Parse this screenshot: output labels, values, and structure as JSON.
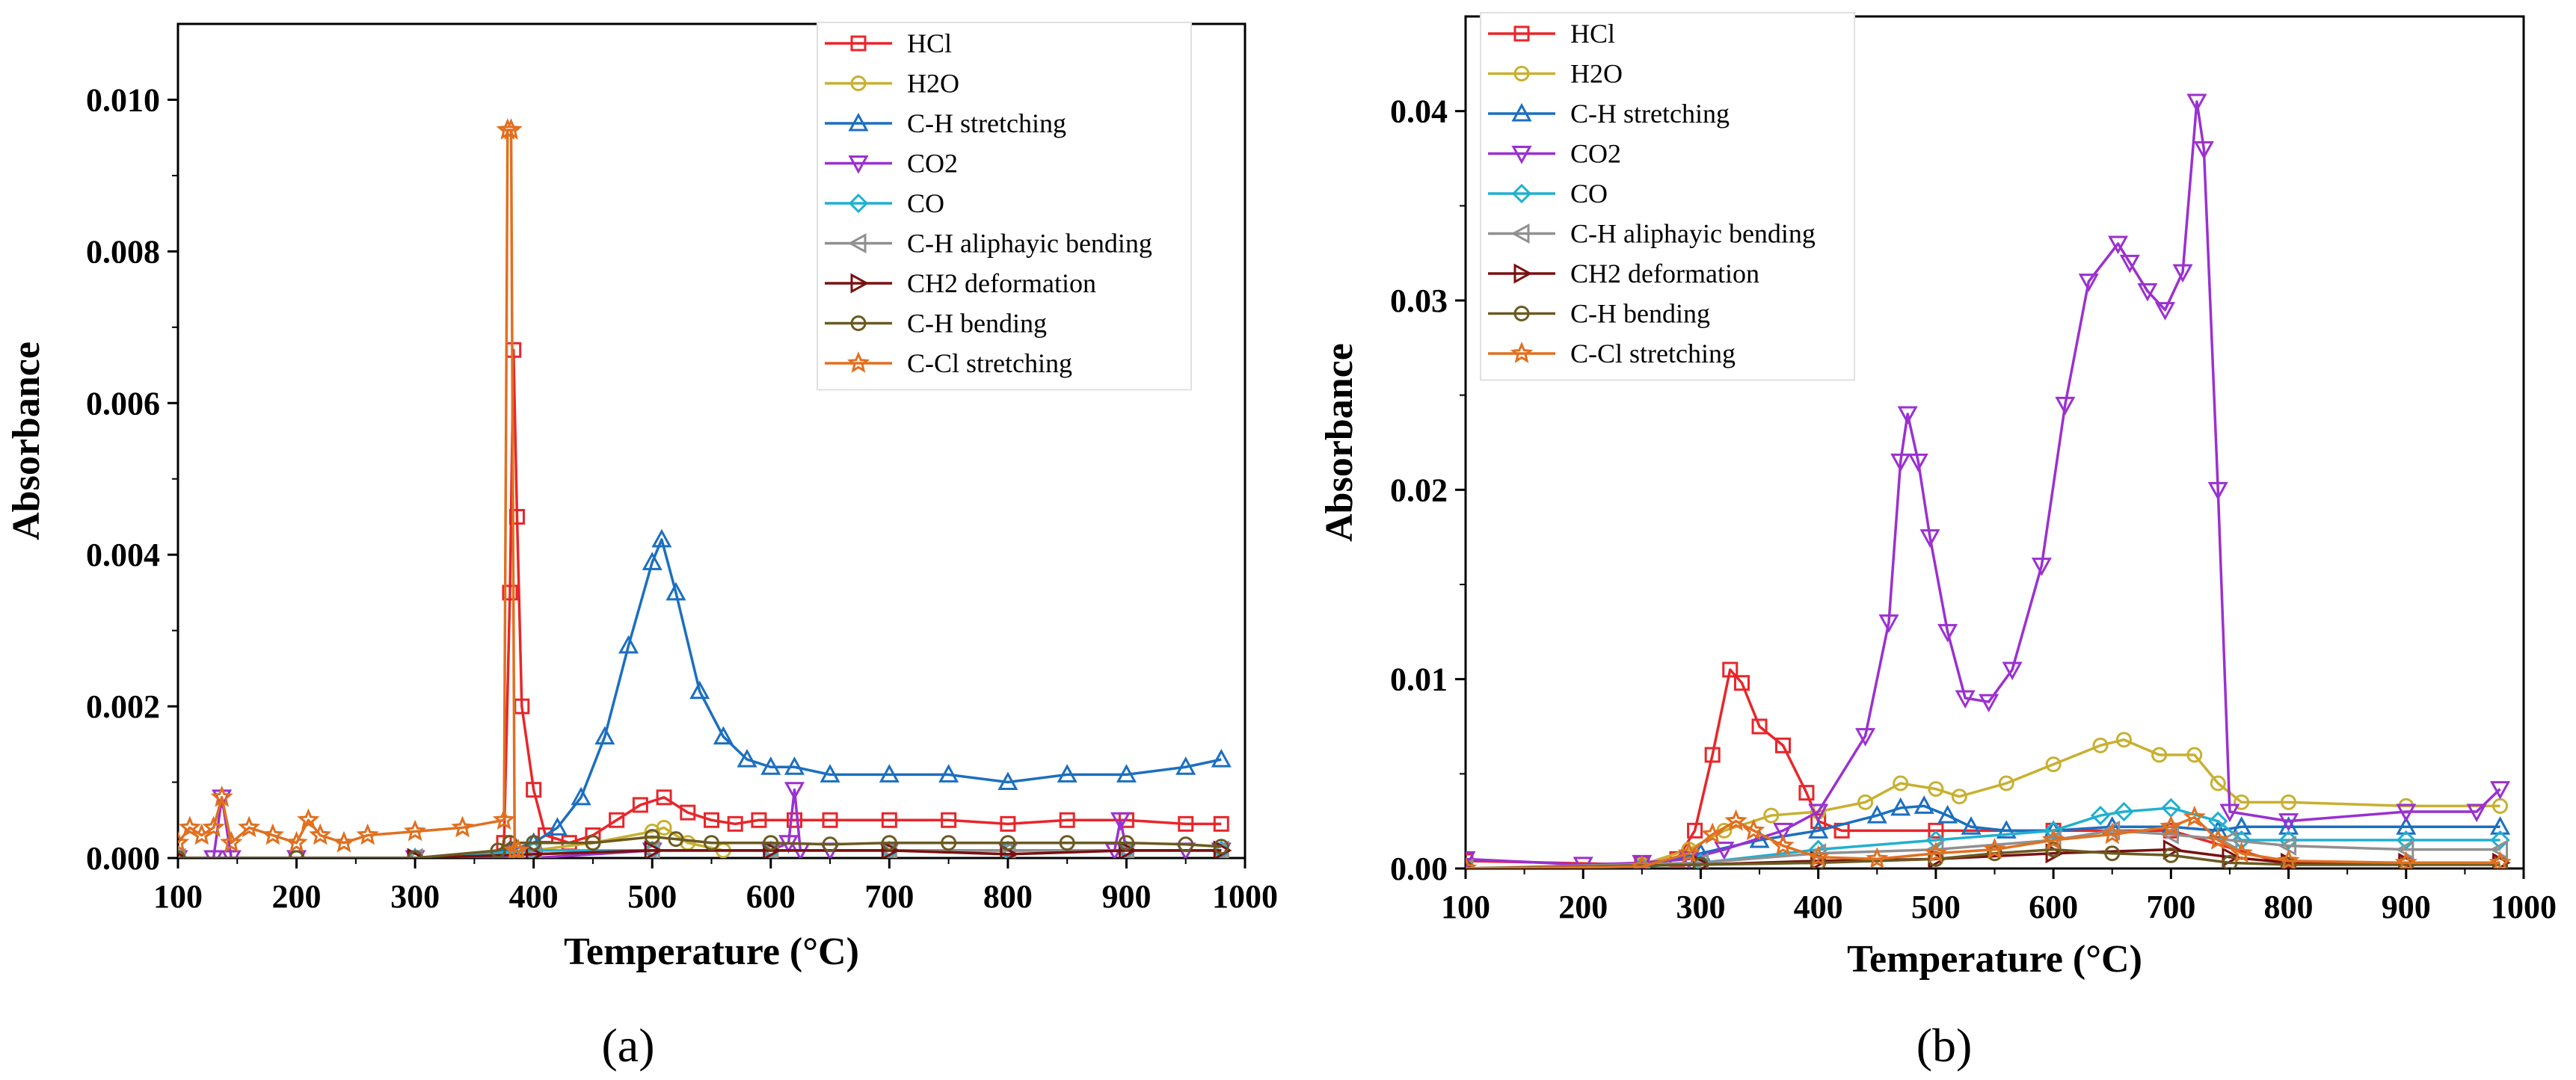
{
  "chart_data": [
    {
      "type": "line",
      "panel_label": "(a)",
      "xlabel": "Temperature (°C)",
      "ylabel": "Absorbance",
      "xlim": [
        100,
        1000
      ],
      "ylim": [
        0,
        0.011
      ],
      "x_ticks": [
        "100",
        "200",
        "300",
        "400",
        "500",
        "600",
        "700",
        "800",
        "900",
        "1000"
      ],
      "y_ticks": [
        "0.000",
        "0.002",
        "0.004",
        "0.006",
        "0.008",
        "0.010"
      ],
      "legend_position": "top-right",
      "series": [
        {
          "name": "HCl",
          "color": "#e8262a",
          "marker": "square",
          "x": [
            100,
            200,
            300,
            370,
            375,
            380,
            383,
            386,
            390,
            400,
            410,
            430,
            450,
            470,
            490,
            510,
            530,
            550,
            570,
            590,
            620,
            650,
            700,
            750,
            800,
            850,
            900,
            950,
            980
          ],
          "y": [
            0.0,
            0.0,
            0.0,
            0.0,
            0.0002,
            0.0035,
            0.0067,
            0.0045,
            0.002,
            0.0009,
            0.0003,
            0.0002,
            0.0003,
            0.0005,
            0.0007,
            0.0008,
            0.0006,
            0.0005,
            0.00045,
            0.0005,
            0.0005,
            0.0005,
            0.0005,
            0.0005,
            0.00045,
            0.0005,
            0.0005,
            0.00045,
            0.00045
          ]
        },
        {
          "name": "H2O",
          "color": "#c8b030",
          "marker": "circle",
          "x": [
            100,
            200,
            300,
            400,
            450,
            500,
            510,
            530,
            560,
            600,
            700,
            800,
            900,
            980
          ],
          "y": [
            0.0,
            0.0,
            0.0,
            0.0001,
            0.0002,
            0.00035,
            0.0004,
            0.0002,
            0.0001,
            0.0001,
            0.0001,
            0.0001,
            0.0001,
            0.0001
          ]
        },
        {
          "name": "C-H stretching",
          "color": "#1b6fc0",
          "marker": "triangle-up",
          "x": [
            100,
            300,
            380,
            400,
            420,
            440,
            460,
            480,
            500,
            508,
            520,
            540,
            560,
            580,
            600,
            620,
            650,
            700,
            750,
            800,
            850,
            900,
            950,
            980
          ],
          "y": [
            0.0,
            0.0,
            0.0001,
            0.0002,
            0.0004,
            0.0008,
            0.0016,
            0.0028,
            0.0039,
            0.0042,
            0.0035,
            0.0022,
            0.0016,
            0.0013,
            0.0012,
            0.0012,
            0.0011,
            0.0011,
            0.0011,
            0.001,
            0.0011,
            0.0011,
            0.0012,
            0.0013
          ]
        },
        {
          "name": "CO2",
          "color": "#9b30d0",
          "marker": "triangle-down",
          "x": [
            100,
            130,
            137,
            145,
            200,
            300,
            400,
            500,
            600,
            615,
            620,
            625,
            650,
            700,
            800,
            890,
            895,
            900,
            950,
            980
          ],
          "y": [
            0.0,
            0.0,
            0.0008,
            0.0,
            0.0,
            0.0,
            0.0,
            0.0001,
            0.0001,
            0.0002,
            0.0009,
            0.0001,
            0.0001,
            0.0001,
            0.0001,
            0.0001,
            0.0005,
            0.0001,
            0.0001,
            0.0001
          ]
        },
        {
          "name": "CO",
          "color": "#20b0d0",
          "marker": "diamond",
          "x": [
            100,
            300,
            400,
            500,
            600,
            700,
            800,
            900,
            980
          ],
          "y": [
            0.0,
            0.0,
            0.0001,
            0.0001,
            0.0001,
            0.0001,
            0.0001,
            0.0001,
            0.0001
          ]
        },
        {
          "name": "C-H aliphayic bending",
          "color": "#909090",
          "marker": "triangle-left",
          "x": [
            100,
            300,
            400,
            500,
            600,
            700,
            800,
            900,
            980
          ],
          "y": [
            0.0,
            0.0,
            5e-05,
            0.0001,
            0.0001,
            0.0001,
            0.0001,
            0.0001,
            0.0001
          ]
        },
        {
          "name": "CH2 deformation",
          "color": "#7a1010",
          "marker": "triangle-right",
          "x": [
            100,
            300,
            400,
            500,
            600,
            700,
            800,
            900,
            980
          ],
          "y": [
            0.0,
            0.0,
            5e-05,
            0.0001,
            0.0001,
            0.0001,
            5e-05,
            0.0001,
            0.0001
          ]
        },
        {
          "name": "C-H bending",
          "color": "#6b5a20",
          "marker": "circle",
          "x": [
            100,
            200,
            300,
            370,
            380,
            400,
            450,
            500,
            520,
            550,
            600,
            650,
            700,
            750,
            800,
            850,
            900,
            950,
            980
          ],
          "y": [
            0.0,
            0.0,
            0.0,
            0.0001,
            0.0002,
            0.0002,
            0.0002,
            0.00028,
            0.00025,
            0.0002,
            0.0002,
            0.00018,
            0.0002,
            0.0002,
            0.0002,
            0.0002,
            0.0002,
            0.00018,
            0.00015
          ]
        },
        {
          "name": "C-Cl stretching",
          "color": "#e07020",
          "marker": "star",
          "x": [
            100,
            110,
            120,
            130,
            137,
            145,
            160,
            180,
            200,
            210,
            220,
            240,
            260,
            300,
            340,
            375,
            378,
            381,
            384,
            387
          ],
          "y": [
            0.0002,
            0.0004,
            0.0003,
            0.0004,
            0.0008,
            0.0002,
            0.0004,
            0.0003,
            0.0002,
            0.0005,
            0.0003,
            0.0002,
            0.0003,
            0.00035,
            0.0004,
            0.0005,
            0.0096,
            0.0096,
            0.0001,
            0.0001
          ]
        }
      ]
    },
    {
      "type": "line",
      "panel_label": "(b)",
      "xlabel": "Temperature (°C)",
      "ylabel": "Absorbance",
      "xlim": [
        100,
        1000
      ],
      "ylim": [
        0,
        0.045
      ],
      "x_ticks": [
        "100",
        "200",
        "300",
        "400",
        "500",
        "600",
        "700",
        "800",
        "900",
        "1000"
      ],
      "y_ticks": [
        "0.00",
        "0.01",
        "0.02",
        "0.03",
        "0.04"
      ],
      "legend_position": "top-left",
      "series": [
        {
          "name": "HCl",
          "color": "#e8262a",
          "marker": "square",
          "x": [
            100,
            250,
            280,
            295,
            310,
            325,
            335,
            350,
            370,
            390,
            400,
            420,
            500,
            600,
            700,
            800,
            900,
            980
          ],
          "y": [
            0.0004,
            0.0002,
            0.0005,
            0.002,
            0.006,
            0.0105,
            0.0098,
            0.0075,
            0.0065,
            0.004,
            0.0025,
            0.002,
            0.002,
            0.002,
            0.002,
            0.0002,
            0.0002,
            0.0002
          ]
        },
        {
          "name": "H2O",
          "color": "#c8b030",
          "marker": "circle",
          "x": [
            100,
            250,
            290,
            320,
            360,
            400,
            440,
            470,
            500,
            520,
            560,
            600,
            640,
            660,
            690,
            720,
            740,
            760,
            800,
            900,
            980
          ],
          "y": [
            0.0,
            0.0002,
            0.001,
            0.002,
            0.0028,
            0.003,
            0.0035,
            0.0045,
            0.0042,
            0.0038,
            0.0045,
            0.0055,
            0.0065,
            0.0068,
            0.006,
            0.006,
            0.0045,
            0.0035,
            0.0035,
            0.0033,
            0.0033
          ]
        },
        {
          "name": "C-H stretching",
          "color": "#1b6fc0",
          "marker": "triangle-up",
          "x": [
            100,
            250,
            300,
            350,
            400,
            450,
            470,
            490,
            510,
            530,
            560,
            600,
            650,
            700,
            740,
            760,
            800,
            900,
            980
          ],
          "y": [
            0.0,
            0.0001,
            0.0008,
            0.0015,
            0.002,
            0.0028,
            0.0032,
            0.0033,
            0.0028,
            0.0022,
            0.002,
            0.002,
            0.0022,
            0.0022,
            0.002,
            0.0022,
            0.0022,
            0.0022,
            0.0022
          ]
        },
        {
          "name": "CO2",
          "color": "#9b30d0",
          "marker": "triangle-down",
          "x": [
            100,
            200,
            250,
            290,
            320,
            370,
            400,
            440,
            460,
            470,
            476,
            485,
            495,
            510,
            525,
            545,
            565,
            590,
            610,
            630,
            655,
            665,
            680,
            695,
            710,
            722,
            728,
            740,
            750,
            800,
            900,
            960,
            980
          ],
          "y": [
            0.0005,
            0.0002,
            0.0003,
            0.0005,
            0.001,
            0.002,
            0.003,
            0.007,
            0.013,
            0.0215,
            0.024,
            0.0215,
            0.0175,
            0.0125,
            0.009,
            0.0088,
            0.0105,
            0.016,
            0.0245,
            0.031,
            0.033,
            0.032,
            0.0305,
            0.0295,
            0.0315,
            0.0405,
            0.038,
            0.02,
            0.003,
            0.0025,
            0.003,
            0.003,
            0.0042
          ]
        },
        {
          "name": "CO",
          "color": "#20b0d0",
          "marker": "diamond",
          "x": [
            100,
            250,
            300,
            400,
            500,
            600,
            640,
            660,
            700,
            740,
            760,
            800,
            900,
            980
          ],
          "y": [
            0.0,
            0.0001,
            0.0003,
            0.001,
            0.0015,
            0.002,
            0.0028,
            0.003,
            0.0032,
            0.0025,
            0.0015,
            0.0015,
            0.0015,
            0.0015
          ]
        },
        {
          "name": "C-H aliphayic bending",
          "color": "#909090",
          "marker": "triangle-left",
          "x": [
            100,
            300,
            400,
            500,
            600,
            650,
            700,
            750,
            800,
            900,
            980
          ],
          "y": [
            0.0,
            0.0003,
            0.0008,
            0.001,
            0.0015,
            0.002,
            0.0018,
            0.0015,
            0.0012,
            0.001,
            0.001
          ]
        },
        {
          "name": "CH2 deformation",
          "color": "#7a1010",
          "marker": "triangle-right",
          "x": [
            100,
            300,
            400,
            500,
            600,
            700,
            750,
            800,
            900,
            980
          ],
          "y": [
            0.0,
            0.0002,
            0.0004,
            0.0005,
            0.0008,
            0.001,
            0.0006,
            0.0003,
            0.0003,
            0.0003
          ]
        },
        {
          "name": "C-H bending",
          "color": "#6b5a20",
          "marker": "circle",
          "x": [
            100,
            300,
            400,
            500,
            550,
            600,
            650,
            700,
            750,
            800,
            900,
            980
          ],
          "y": [
            0.0,
            0.0002,
            0.0003,
            0.0005,
            0.0008,
            0.001,
            0.0008,
            0.0007,
            0.0003,
            0.0002,
            0.0002,
            0.0002
          ]
        },
        {
          "name": "C-Cl stretching",
          "color": "#e07020",
          "marker": "star",
          "x": [
            100,
            250,
            290,
            310,
            330,
            345,
            370,
            400,
            450,
            500,
            550,
            600,
            650,
            700,
            720,
            740,
            760,
            800,
            900,
            980
          ],
          "y": [
            0.0,
            0.0001,
            0.0008,
            0.0018,
            0.0025,
            0.002,
            0.0012,
            0.0006,
            0.0005,
            0.0008,
            0.001,
            0.0015,
            0.0018,
            0.0022,
            0.0027,
            0.0015,
            0.0008,
            0.0004,
            0.0003,
            0.0003
          ]
        }
      ]
    }
  ]
}
